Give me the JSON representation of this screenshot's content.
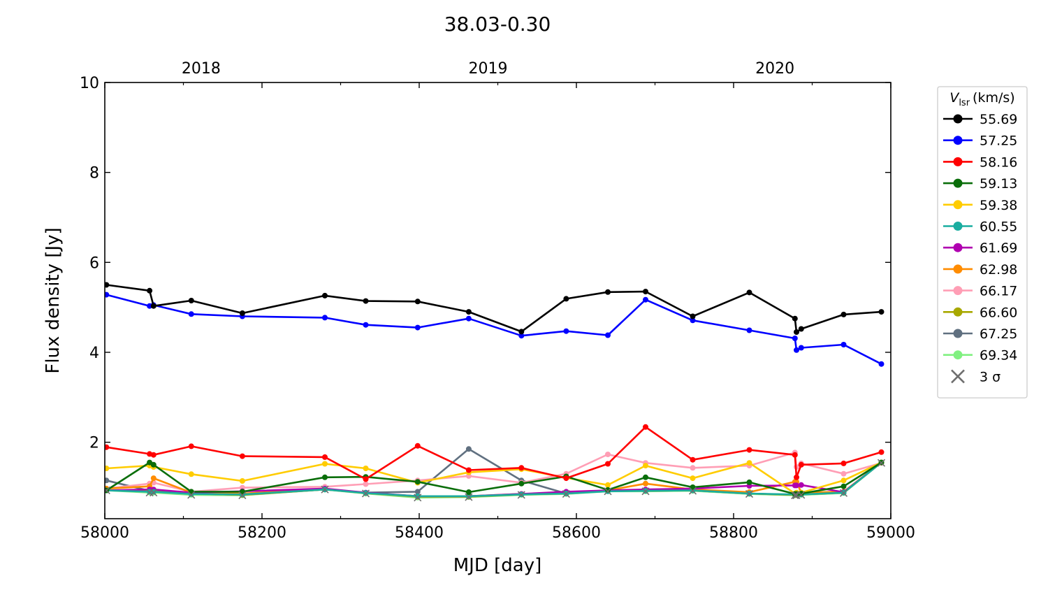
{
  "chart_data": {
    "type": "line",
    "title": "38.03-0.30",
    "xlabel": "MJD [day]",
    "ylabel": "Flux density [Jy]",
    "xlim": [
      58000,
      59000
    ],
    "ylim": [
      0.3,
      10
    ],
    "xticks": [
      58000,
      58200,
      58400,
      58600,
      58800,
      59000
    ],
    "yticks": [
      2,
      4,
      6,
      8,
      10
    ],
    "top_axis": {
      "labels": [
        "2018",
        "2019",
        "2020"
      ],
      "mjd": [
        58119,
        58484,
        58849
      ]
    },
    "legend": {
      "title_main": "V",
      "title_sub": "lsr",
      "title_unit": "(km/s)",
      "position": "outside-right",
      "limit_label": "3 σ",
      "limit_color": "#6e6e6e"
    },
    "x": [
      58002,
      58057,
      58062,
      58110,
      58175,
      58280,
      58332,
      58398,
      58463,
      58530,
      58587,
      58640,
      58688,
      58748,
      58820,
      58878,
      58880,
      58886,
      58940,
      58988
    ],
    "series": [
      {
        "name": "55.69",
        "color": "#000000",
        "values": [
          5.5,
          5.37,
          5.03,
          5.15,
          4.87,
          5.26,
          5.14,
          5.13,
          4.9,
          4.46,
          5.19,
          5.34,
          5.35,
          4.8,
          5.33,
          4.75,
          4.45,
          4.52,
          4.84,
          4.9
        ]
      },
      {
        "name": "57.25",
        "color": "#0000ff",
        "values": [
          5.28,
          5.03,
          5.05,
          4.85,
          4.8,
          4.77,
          4.61,
          4.55,
          4.75,
          4.37,
          4.47,
          4.38,
          5.17,
          4.71,
          4.49,
          4.31,
          4.05,
          4.1,
          4.17,
          3.74
        ]
      },
      {
        "name": "58.16",
        "color": "#ff0000",
        "values": [
          1.89,
          1.74,
          1.72,
          1.91,
          1.69,
          1.67,
          1.18,
          1.92,
          1.38,
          1.43,
          1.2,
          1.52,
          2.34,
          1.61,
          1.83,
          1.72,
          1.22,
          1.5,
          1.53,
          1.78
        ]
      },
      {
        "name": "59.13",
        "color": "#0a6e0a",
        "values": [
          0.93,
          1.55,
          1.5,
          0.9,
          0.9,
          1.22,
          1.23,
          1.12,
          0.89,
          1.08,
          1.24,
          0.94,
          1.22,
          1.0,
          1.11,
          0.85,
          0.85,
          0.86,
          1.02,
          1.55
        ]
      },
      {
        "name": "59.38",
        "color": "#ffcc00",
        "values": [
          1.42,
          1.48,
          1.45,
          1.29,
          1.14,
          1.52,
          1.42,
          1.1,
          1.33,
          1.4,
          1.21,
          1.05,
          1.48,
          1.2,
          1.54,
          0.86,
          0.88,
          0.88,
          1.15,
          1.55
        ]
      },
      {
        "name": "60.55",
        "color": "#1aada0",
        "values": [
          0.93,
          0.9,
          0.9,
          0.85,
          0.84,
          0.95,
          0.87,
          0.8,
          0.8,
          0.84,
          0.86,
          0.91,
          0.92,
          0.93,
          0.86,
          0.84,
          0.84,
          0.84,
          0.88,
          1.55
        ]
      },
      {
        "name": "61.69",
        "color": "#b000b0",
        "values": [
          0.93,
          0.95,
          0.95,
          0.88,
          0.91,
          0.97,
          0.88,
          0.8,
          0.8,
          0.85,
          0.9,
          0.93,
          0.95,
          0.97,
          1.03,
          1.04,
          1.04,
          1.05,
          0.89,
          1.55
        ]
      },
      {
        "name": "62.98",
        "color": "#ff8c00",
        "values": [
          0.97,
          1.02,
          1.2,
          0.88,
          0.86,
          0.96,
          0.87,
          0.8,
          0.8,
          0.85,
          0.86,
          0.93,
          1.08,
          0.95,
          0.89,
          1.12,
          1.12,
          0.88,
          0.9,
          1.55
        ]
      },
      {
        "name": "66.17",
        "color": "#ff9eb5",
        "values": [
          0.97,
          1.08,
          1.1,
          0.9,
          0.99,
          1.01,
          1.07,
          1.15,
          1.25,
          1.1,
          1.3,
          1.73,
          1.54,
          1.43,
          1.48,
          1.77,
          1.45,
          1.53,
          1.3,
          1.54
        ]
      },
      {
        "name": "66.60",
        "color": "#a8a800",
        "values": [
          0.93,
          0.92,
          0.92,
          0.86,
          0.83,
          0.95,
          0.87,
          0.79,
          0.79,
          0.84,
          0.86,
          0.92,
          0.92,
          0.93,
          0.86,
          0.83,
          0.83,
          0.84,
          0.88,
          1.55
        ]
      },
      {
        "name": "67.25",
        "color": "#607080",
        "values": [
          1.15,
          0.92,
          0.92,
          0.86,
          0.83,
          0.95,
          0.88,
          0.9,
          1.85,
          1.15,
          0.86,
          0.92,
          0.92,
          0.93,
          0.86,
          0.83,
          0.83,
          0.84,
          0.88,
          1.55
        ]
      },
      {
        "name": "69.34",
        "color": "#80f080",
        "values": [
          0.93,
          0.88,
          0.88,
          0.83,
          0.82,
          0.95,
          0.86,
          0.77,
          0.78,
          0.83,
          0.85,
          0.91,
          0.91,
          0.92,
          0.85,
          0.82,
          0.82,
          0.83,
          0.87,
          1.55
        ]
      }
    ],
    "limit_series": [
      "55.69",
      "57.25",
      "58.16",
      "59.13",
      "59.38",
      "60.55",
      "61.69",
      "62.98",
      "66.17",
      "66.60",
      "67.25"
    ],
    "grid": false
  }
}
